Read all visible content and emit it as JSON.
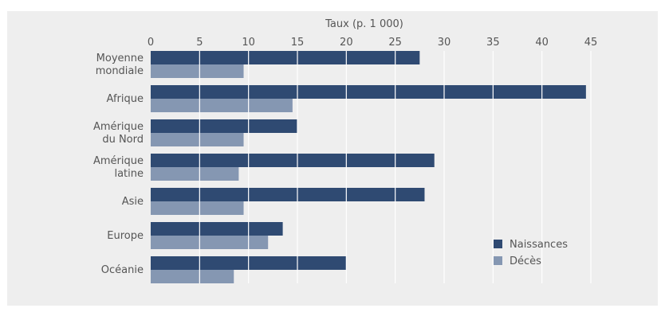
{
  "chart_data": {
    "type": "bar",
    "orientation": "horizontal",
    "title": "",
    "xlabel": "Taux (p. 1 000)",
    "ylabel": "",
    "xlim": [
      0,
      45
    ],
    "xticks": [
      0,
      5,
      10,
      15,
      20,
      25,
      30,
      35,
      40,
      45
    ],
    "x_axis_position": "top",
    "grid": "vertical white lines over bars",
    "categories": [
      [
        "Moyenne",
        "mondiale"
      ],
      [
        "Afrique"
      ],
      [
        "Amérique",
        "du Nord"
      ],
      [
        "Amérique",
        "latine"
      ],
      [
        "Asie"
      ],
      [
        "Europe"
      ],
      [
        "Océanie"
      ]
    ],
    "series": [
      {
        "name": "Naissances",
        "color": "#2f4a72",
        "values": [
          27.5,
          44.5,
          15,
          29,
          28,
          13.5,
          20
        ]
      },
      {
        "name": "Décès",
        "color": "#8597b2",
        "values": [
          9.5,
          14.5,
          9.5,
          9,
          9.5,
          12,
          8.5
        ]
      }
    ],
    "legend_position": "right"
  }
}
